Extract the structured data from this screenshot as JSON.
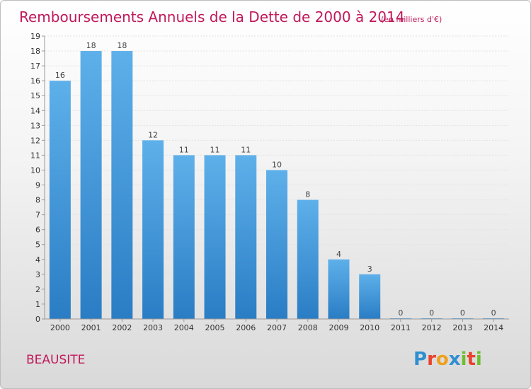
{
  "chart_data": {
    "type": "bar",
    "title": "Remboursements Annuels de la Dette de 2000 à 2014",
    "subtitle": "(en milliers d'€)",
    "categories": [
      "2000",
      "2001",
      "2002",
      "2003",
      "2004",
      "2005",
      "2006",
      "2007",
      "2008",
      "2009",
      "2010",
      "2011",
      "2012",
      "2013",
      "2014"
    ],
    "values": [
      16,
      18,
      18,
      12,
      11,
      11,
      11,
      10,
      8,
      4,
      3,
      0,
      0,
      0,
      0
    ],
    "y_ticks": [
      "0",
      "1",
      "2",
      "3",
      "4",
      "5",
      "6",
      "7",
      "8",
      "9",
      "10",
      "11",
      "12",
      "13",
      "14",
      "15",
      "16",
      "17",
      "18",
      "19"
    ],
    "ylim": [
      0,
      19
    ],
    "xlabel": "",
    "ylabel": "",
    "bar_color": "#3f93d6",
    "legend": "none"
  },
  "footer": {
    "commune": "BEAUSITE",
    "logo_letters": [
      "P",
      "r",
      "o",
      "x",
      "i",
      "t",
      "i"
    ],
    "logo_colors": [
      "#2f8fd0",
      "#e8412c",
      "#f0a020",
      "#2f8fd0",
      "#6cbf2f",
      "#e8412c",
      "#6cbf2f"
    ]
  }
}
